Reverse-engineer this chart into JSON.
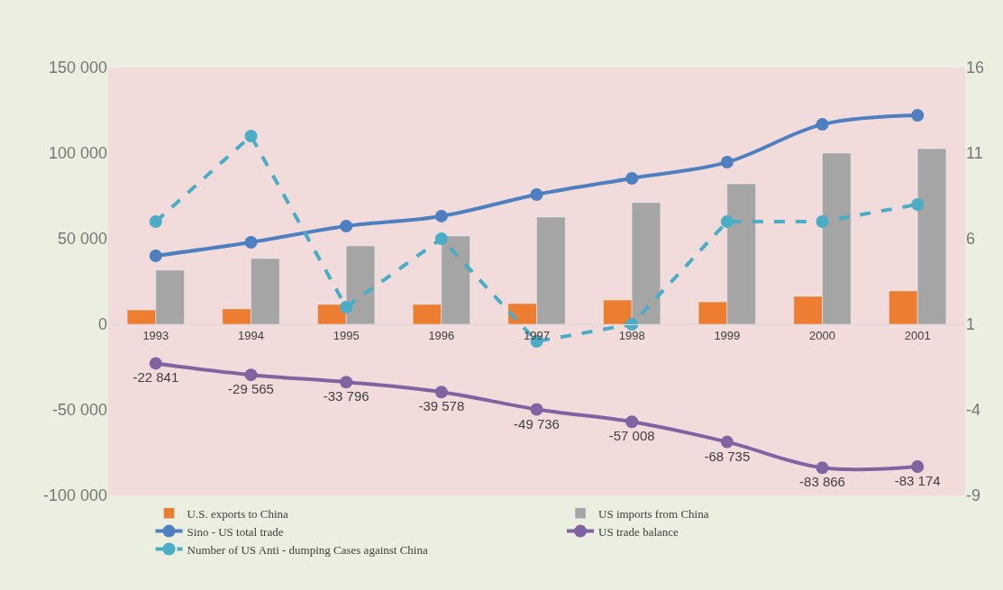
{
  "chart_data": {
    "type": "bar",
    "categories": [
      "1993",
      "1994",
      "1995",
      "1996",
      "1997",
      "1998",
      "1999",
      "2000",
      "2001"
    ],
    "series": [
      {
        "name": "U.S. exports to China",
        "color": "#ed7d31",
        "values": [
          8400,
          9000,
          11600,
          11600,
          12100,
          14200,
          13100,
          16300,
          19500
        ]
      },
      {
        "name": "US imports from China",
        "color": "#a5a5a5",
        "values": [
          31600,
          38400,
          45800,
          51600,
          62600,
          71100,
          82100,
          100000,
          102600
        ]
      },
      {
        "name": "Sino - US total trade",
        "type": "line",
        "color": "#4e7fc0",
        "marker": "circle",
        "line_style": "solid",
        "values": [
          40000,
          47900,
          57400,
          63200,
          75800,
          85300,
          94700,
          116800,
          122100
        ]
      },
      {
        "name": "US trade balance",
        "type": "line",
        "color": "#8064a2",
        "marker": "circle",
        "line_style": "solid",
        "values": [
          -22841,
          -29565,
          -33796,
          -39578,
          -49736,
          -57008,
          -68735,
          -83866,
          -83174
        ],
        "value_labels": [
          "-22 841",
          "-29 565",
          "-33 796",
          "-39 578",
          "-49 736",
          "-57 008",
          "-68 735",
          "-83 866",
          "-83 174"
        ]
      },
      {
        "name": "Number of US Anti - dumping Cases against China",
        "type": "line",
        "axis": "y2",
        "color": "#4bacc6",
        "marker": "circle",
        "line_style": "dashed",
        "values": [
          7,
          12,
          2,
          6,
          0,
          1,
          7,
          7,
          8
        ]
      }
    ],
    "ylim": [
      -100000,
      150000
    ],
    "yticks": [
      {
        "value": -100000,
        "label": "-100 000"
      },
      {
        "value": -50000,
        "label": "-50 000"
      },
      0,
      {
        "value": 50000,
        "label": "50 000"
      },
      {
        "value": 100000,
        "label": "100 000"
      },
      {
        "value": 150000,
        "label": "150 000"
      }
    ],
    "y2lim": [
      -9,
      16
    ],
    "y2ticks": [
      -9,
      -4,
      1,
      6,
      11,
      16
    ],
    "grid": false,
    "legend": "bottom"
  }
}
